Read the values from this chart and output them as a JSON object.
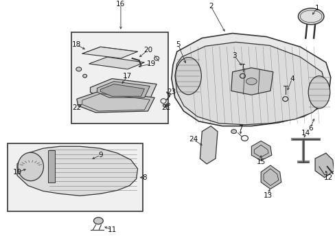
{
  "bg_color": "#ffffff",
  "lc": "#333333",
  "gray_light": "#e8e8e8",
  "gray_med": "#c8c8c8",
  "gray_dark": "#a0a0a0",
  "fs": 7.5,
  "fs_small": 6.5
}
